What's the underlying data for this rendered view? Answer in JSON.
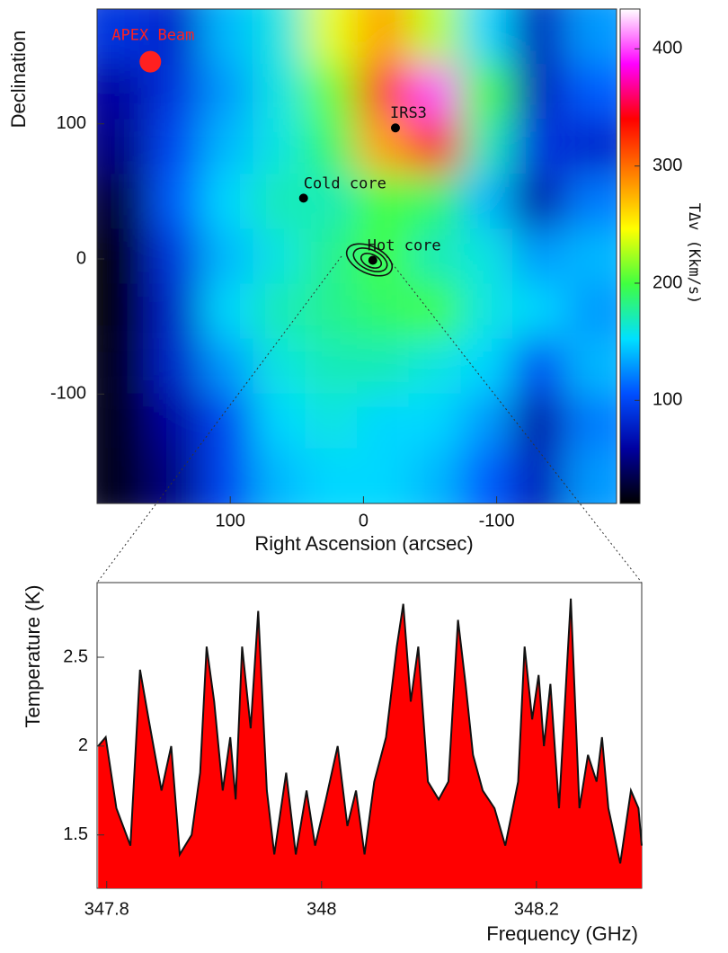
{
  "chart_data": [
    {
      "type": "heatmap",
      "xlabel": "Right Ascension (arcsec)",
      "ylabel": "Declination",
      "colorbar_label": "TΔv (Kkm/s)",
      "xlim": [
        200,
        -190
      ],
      "ylim": [
        -181,
        185
      ],
      "xticks": [
        100,
        0,
        -100
      ],
      "yticks": [
        100,
        0,
        -100
      ],
      "zlim": [
        12,
        434
      ],
      "zticks": [
        100,
        200,
        300,
        400
      ],
      "colormap": [
        "#000000",
        "#0000a0",
        "#0050ff",
        "#00e0ff",
        "#40ff40",
        "#ffff00",
        "#ff8000",
        "#ff0000",
        "#ff00ff",
        "#ffffff"
      ],
      "z": [
        [
          90,
          80,
          140,
          160,
          240,
          280,
          230,
          150,
          70,
          130
        ],
        [
          60,
          90,
          130,
          160,
          210,
          320,
          400,
          200,
          70,
          110
        ],
        [
          50,
          100,
          140,
          160,
          190,
          280,
          340,
          170,
          90,
          80
        ],
        [
          30,
          110,
          150,
          170,
          170,
          200,
          190,
          140,
          60,
          120
        ],
        [
          15,
          90,
          140,
          160,
          180,
          200,
          170,
          160,
          130,
          140
        ],
        [
          15,
          80,
          150,
          170,
          180,
          190,
          200,
          160,
          150,
          130
        ],
        [
          20,
          80,
          130,
          160,
          170,
          170,
          160,
          150,
          100,
          140
        ],
        [
          20,
          60,
          100,
          150,
          160,
          150,
          150,
          130,
          60,
          120
        ],
        [
          20,
          50,
          100,
          140,
          150,
          150,
          140,
          110,
          70,
          130
        ]
      ],
      "points": [
        {
          "name": "APEX Beam",
          "x": 160,
          "y": 146,
          "color": "#ff2020"
        },
        {
          "name": "IRS3",
          "x": -24,
          "y": 97
        },
        {
          "name": "Cold core",
          "x": 45,
          "y": 45
        },
        {
          "name": "Hot core",
          "x": -7,
          "y": -1
        }
      ]
    },
    {
      "type": "area",
      "xlabel": "Frequency (GHz)",
      "ylabel": "Temperature (K)",
      "color": "#ff0000",
      "line_color": "#111111",
      "xlim": [
        347.791,
        348.298
      ],
      "ylim": [
        1.2,
        2.92
      ],
      "xticks": [
        347.8,
        348,
        348.2
      ],
      "yticks": [
        1.5,
        2,
        2.5
      ],
      "x": [
        347.792,
        347.799,
        347.809,
        347.822,
        347.831,
        347.839,
        347.851,
        347.86,
        347.868,
        347.879,
        347.887,
        347.893,
        347.9,
        347.908,
        347.915,
        347.92,
        347.926,
        347.934,
        347.941,
        347.949,
        347.956,
        347.967,
        347.976,
        347.986,
        347.994,
        348.004,
        348.015,
        348.024,
        348.032,
        348.04,
        348.049,
        348.06,
        348.07,
        348.076,
        348.083,
        348.09,
        348.099,
        348.109,
        348.118,
        348.127,
        348.134,
        348.141,
        348.15,
        348.161,
        348.171,
        348.183,
        348.189,
        348.196,
        348.202,
        348.207,
        348.213,
        348.221,
        348.232,
        348.24,
        348.248,
        348.256,
        348.261,
        348.267,
        348.278,
        348.288,
        348.295,
        348.298
      ],
      "values": [
        2.0,
        2.05,
        1.65,
        1.44,
        2.43,
        2.15,
        1.75,
        2.0,
        1.39,
        1.5,
        1.85,
        2.56,
        2.25,
        1.75,
        2.05,
        1.7,
        2.56,
        2.1,
        2.76,
        1.75,
        1.39,
        1.85,
        1.39,
        1.75,
        1.44,
        1.7,
        2.0,
        1.55,
        1.75,
        1.39,
        1.8,
        2.05,
        2.56,
        2.8,
        2.25,
        2.56,
        1.8,
        1.7,
        1.8,
        2.71,
        2.35,
        1.95,
        1.75,
        1.65,
        1.44,
        1.8,
        2.56,
        2.15,
        2.4,
        2.0,
        2.35,
        1.65,
        2.83,
        1.65,
        1.95,
        1.8,
        2.05,
        1.65,
        1.34,
        1.75,
        1.65,
        1.44
      ]
    }
  ]
}
